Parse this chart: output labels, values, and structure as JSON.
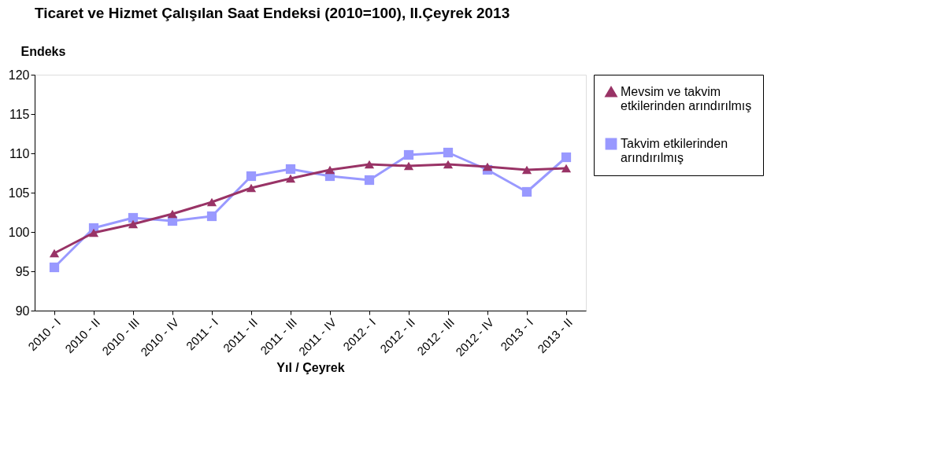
{
  "chart_data": {
    "type": "line",
    "title": "Ticaret ve Hizmet Çalışılan Saat Endeksi (2010=100), II.Çeyrek 2013",
    "xlabel": "Yıl / Çeyrek",
    "ylabel": "Endeks",
    "categories": [
      "2010 - I",
      "2010 - II",
      "2010 - III",
      "2010 - IV",
      "2011 - I",
      "2011 - II",
      "2011 - III",
      "2011 - IV",
      "2012 - I",
      "2012 - II",
      "2012 - III",
      "2012 - IV",
      "2013 - I",
      "2013 - II"
    ],
    "series": [
      {
        "name": "Mevsim ve takvim etkilerinden arındırılmış",
        "color": "#993366",
        "marker": "triangle",
        "values": [
          97.3,
          99.9,
          101.0,
          102.3,
          103.8,
          105.6,
          106.8,
          107.9,
          108.6,
          108.4,
          108.6,
          108.3,
          107.9,
          108.1
        ]
      },
      {
        "name": "Takvim etkilerinden arındırılmış",
        "color": "#9999ff",
        "marker": "square",
        "values": [
          95.5,
          100.5,
          101.8,
          101.4,
          102.0,
          107.1,
          108.0,
          107.1,
          106.6,
          109.8,
          110.1,
          107.9,
          105.1,
          109.5
        ]
      }
    ],
    "ylim": [
      90,
      120
    ],
    "yticks": [
      90,
      95,
      100,
      105,
      110,
      115,
      120
    ],
    "grid": false,
    "legend": "right",
    "line_style": "solid"
  }
}
